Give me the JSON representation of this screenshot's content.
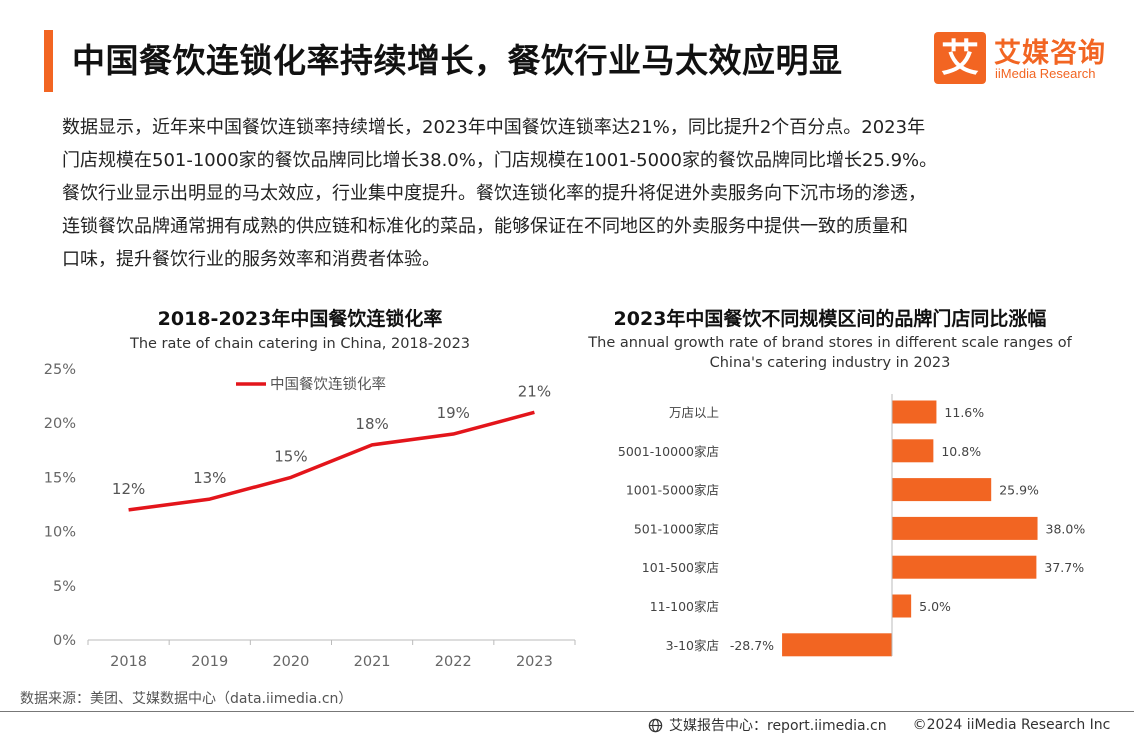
{
  "header": {
    "title": "中国餐饮连锁化率持续增长，餐饮行业马太效应明显",
    "accent_color": "#f26522"
  },
  "logo": {
    "mark": "艾",
    "name_cn": "艾媒咨询",
    "name_en": "iiMedia Research",
    "color": "#f26522"
  },
  "intro": {
    "lines": [
      "数据显示，近年来中国餐饮连锁率持续增长，2023年中国餐饮连锁率达21%，同比提升2个百分点。2023年",
      "门店规模在501-1000家的餐饮品牌同比增长38.0%，门店规模在1001-5000家的餐饮品牌同比增长25.9%。",
      "餐饮行业显示出明显的马太效应，行业集中度提升。餐饮连锁化率的提升将促进外卖服务向下沉市场的渗透，",
      "连锁餐饮品牌通常拥有成熟的供应链和标准化的菜品，能够保证在不同地区的外卖服务中提供一致的质量和",
      "口味，提升餐饮行业的服务效率和消费者体验。"
    ]
  },
  "chart_data": [
    {
      "type": "line",
      "title": "2018-2023年中国餐饮连锁化率",
      "subtitle": "The rate of chain catering in China, 2018-2023",
      "categories": [
        "2018",
        "2019",
        "2020",
        "2021",
        "2022",
        "2023"
      ],
      "series": [
        {
          "name": "中国餐饮连锁化率",
          "values": [
            12,
            13,
            15,
            18,
            19,
            21
          ],
          "labels": [
            "12%",
            "13%",
            "15%",
            "18%",
            "19%",
            "21%"
          ],
          "color": "#e3151b"
        }
      ],
      "yticks": [
        "0%",
        "5%",
        "10%",
        "15%",
        "20%",
        "25%"
      ],
      "ylim": [
        0,
        25
      ],
      "grid": false,
      "legend": "top"
    },
    {
      "type": "bar",
      "orientation": "horizontal",
      "title": "2023年中国餐饮不同规模区间的品牌门店同比涨幅",
      "subtitle_lines": [
        "The annual growth rate of brand stores in different scale ranges of",
        "China's catering industry in 2023"
      ],
      "categories": [
        "万店以上",
        "5001-10000家店",
        "1001-5000家店",
        "501-1000家店",
        "101-500家店",
        "11-100家店",
        "3-10家店"
      ],
      "values": [
        11.6,
        10.8,
        25.9,
        38.0,
        37.7,
        5.0,
        -28.7
      ],
      "labels": [
        "11.6%",
        "10.8%",
        "25.9%",
        "38.0%",
        "37.7%",
        "5.0%",
        "-28.7%"
      ],
      "color": "#f26522",
      "grid": false
    }
  ],
  "source": "数据来源：美团、艾媒数据中心（data.iimedia.cn）",
  "footer": {
    "center": "艾媒报告中心：report.iimedia.cn",
    "copyright": "©2024  iiMedia Research  Inc"
  }
}
